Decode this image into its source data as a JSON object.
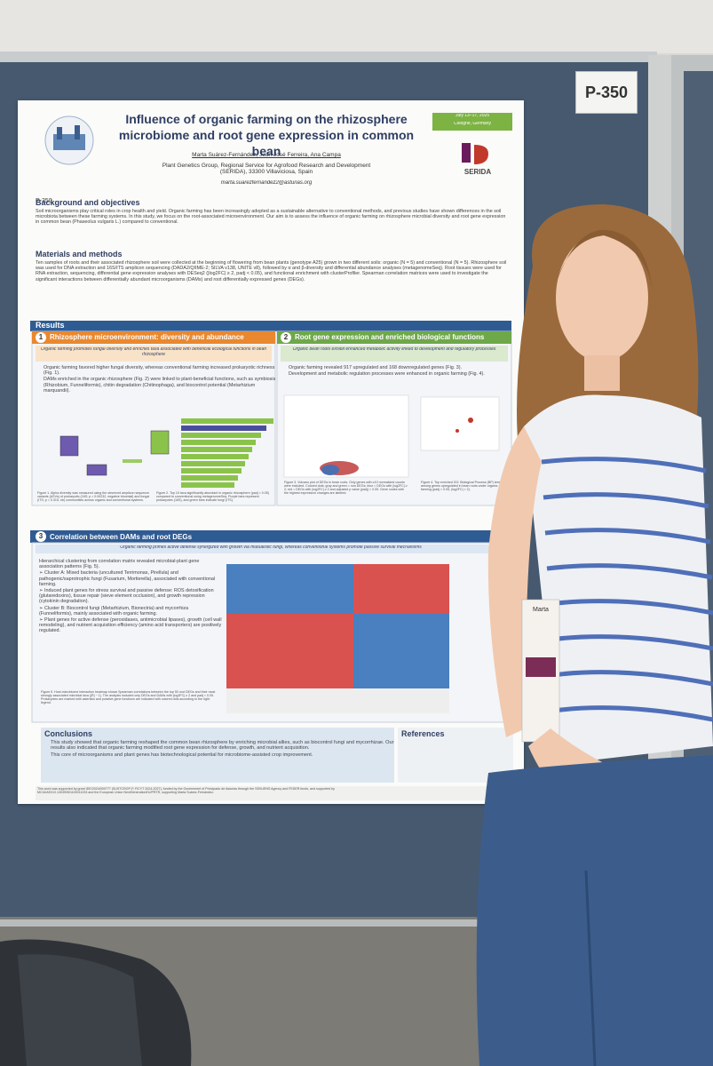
{
  "board_label": "P-350",
  "poster": {
    "poster_id": "P-350",
    "title": "Influence of organic farming on the rhizosphere microbiome and root gene expression in common bean",
    "authors": "Marta Suárez-Fernández, Juan José Ferreira, Ana Campa",
    "affiliation": "Plant Genetics Group, Regional Service for Agrofood Research and Development (SERIDA), 33300 Villaviciosa, Spain",
    "email": "marta.suarezfernandez2@asturias.org",
    "conference_date": "July 13–17, 2025",
    "conference_place": "Cologne, Germany",
    "institute": "SERIDA",
    "background": {
      "heading": "Background and objectives",
      "text": "Soil microorganisms play critical roles in crop health and yield. Organic farming has been increasingly adopted as a sustainable alternative to conventional methods, and previous studies have shown differences in the soil microbiota between these farming systems. In this study, we focus on the root-associated microenvironment. Our aim is to assess the influence of organic farming on rhizosphere microbial diversity and root gene expression in common bean (Phaseolus vulgaris L.) compared to conventional."
    },
    "methods": {
      "heading": "Materials and methods",
      "text": "Ten samples of roots and their associated rhizosphere soil were collected at the beginning of flowering from bean plants (genotype A25) grown in two different soils: organic (N = 5) and conventional (N = 5). Rhizosphere soil was used for DNA extraction and 16S/ITS amplicon sequencing (DADA2/QIIME-2; SILVA v138, UNITE v8), followed by α and β-diversity and differential abundance analyses (metagenomeSeq). Root tissues were used for RNA extraction, sequencing, differential gene expression analyses with DESeq2 (|log2FC| ≥ 2, padj < 0.05), and functional enrichment with clusterProfiler. Spearman correlation matrices were used to investigate the significant interactions between differentially abundant microorganisms (DAMs) and root differentially expressed genes (DEGs)."
    },
    "results_heading": "Results",
    "panels": [
      {
        "number": "1",
        "title": "Rhizosphere microenvironment: diversity and abundance",
        "subtitle": "Organic farming promotes fungal diversity and enriches taxa associated with beneficial ecological functions in bean rhizosphere",
        "bullets": [
          "Organic farming favored higher fungal diversity, whereas conventional farming increased prokaryotic richness (Fig. 1).",
          "DAMs enriched in the organic rhizosphere (Fig. 2) were linked to plant-beneficial functions, such as symbiosis (Rhizobium, Funneliformis), chitin degradation (Chitinophaga), and biocontrol potential (Metarhizium marquandii)."
        ],
        "captions": [
          "Figure 1. Alpha diversity was measured using the observed amplicon sequence variants (ASVs) of prokaryotic (16S; p = 0.00232, negative binomial) and fungal (ITS; p = 0.315, nb) communities across organic and conventional systems.",
          "Figure 2. Top 10 taxa significantly abundant in organic rhizosphere (padj < 0.05) compared to conventional using metagenomeSeq. Purple bars represent prokaryotes (16S), and green bars indicate fungi (ITS)."
        ]
      },
      {
        "number": "2",
        "title": "Root gene expression and enriched biological functions",
        "subtitle": "Organic bean roots exhibit enhanced metabolic activity linked to development and regulatory processes",
        "bullets": [
          "Organic farming revealed 917 upregulated and 168 downregulated genes (Fig. 3).",
          "Development and metabolic regulation processes were enhanced in organic farming (Fig. 4)."
        ],
        "captions": [
          "Figure 3. Volcano plot of DEGs in bean roots. Only genes with ≥10 normalized counts were included. Colored dots: gray and green = non DEGs; blue = DEGs with |log2FC| ≥ 2; red = DEGs with |log2FC| ≥ 2 and adjusted p value (padj) < 0.05. Gene codes with the highest expression changes are labeled.",
          "Figure 4. Top enriched GO: Biological Process (BP) terms among genes upregulated in bean roots under organic farming (padj < 0.05, |log2FC| > 2)."
        ]
      },
      {
        "number": "3",
        "title": "Correlation between DAMs and root DEGs",
        "subtitle": "Organic farming primes active defense synergized with growth via mutualistic fungi, whereas conventional systems promote passive survival mechanisms",
        "bullets": [
          "Hierarchical clustering from correlation matrix revealed microbial-plant gene association patterns (Fig. 5).",
          "➢ Cluster A: Mixed bacteria (uncultured Terrimonas, Pirellula) and pathogenic/saprotrophic fungi (Fusarium, Mortierella), associated with conventional farming.",
          "➢ Induced plant genes for stress survival and passive defense: ROS detoxification (glutaredoxins), tissue repair (sieve element occlusion), and growth repression (cytokinin degradation).",
          "➢ Cluster B: Biocontrol fungi (Metarhizium, Bionectria) and mycorrhiza (Funneliformis), mainly associated with organic farming.",
          "➢ Plant genes for active defense (peroxidases, antimicrobial lipases), growth (cell wall remodeling), and nutrient acquisition efficiency (amino acid transporters) are positively regulated."
        ],
        "captions": [
          "Figure 5. Host-microbiome interaction heatmap shows Spearman correlations between the top 50 root DEGs and their most strongly associated microbial taxa (|R| ~ 1). The analysis included only DEGs and DAMs with |log2FC| ≥ 2 and padj < 0.05. Prokaryotes are marked with asterisks and putative gene functions are indicated with colored dots according to the right legend."
        ]
      }
    ],
    "conclusions": {
      "heading": "Conclusions",
      "bullets": [
        "This study showed that organic farming reshaped the common bean rhizosphere by enriching microbial allies, such as biocontrol fungi and mycorrhizae. Our results also indicated that organic farming modified root gene expression for defense, growth, and nutrient acquisition.",
        "This core of microorganisms and plant genes has biotechnological potential for microbiome-assisted crop improvement."
      ]
    },
    "references_heading": "References",
    "funding": "This work was supported by grant IDE/2024/000777 (SUSTCROP-P, FICYT 2024-2027), funded by the Government of Principado de Asturias through the SEKUENS Agency and FEDER funds, and supported by MCIU/AEI/10.13039/501100011033 and the European Union NextGenerationEU/PRTR, supporting Marta Suárez-Fernández."
  },
  "badge_name": "Marta"
}
